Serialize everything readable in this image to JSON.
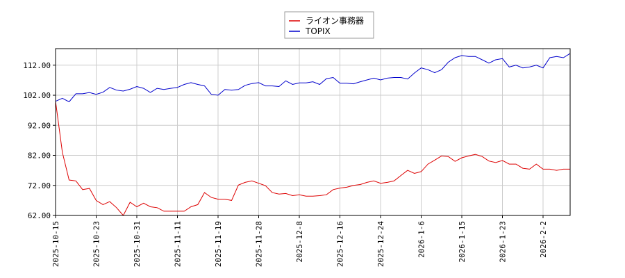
{
  "chart_data": {
    "type": "line",
    "title": "",
    "xlabel": "",
    "ylabel": "",
    "ylim": [
      62,
      117.5
    ],
    "yticks": [
      "62.00",
      "72.00",
      "82.00",
      "92.00",
      "102.00",
      "112.00"
    ],
    "ytick_values": [
      62,
      72,
      82,
      92,
      102,
      112
    ],
    "xticks": [
      "2025-10-15",
      "2025-10-23",
      "2025-10-31",
      "2025-11-11",
      "2025-11-19",
      "2025-11-28",
      "2025-12-8",
      "2025-12-16",
      "2025-12-24",
      "2026-1-6",
      "2026-1-15",
      "2026-1-23",
      "2026-2-2"
    ],
    "xtick_index": [
      0,
      6,
      12,
      18,
      24,
      30,
      36,
      42,
      48,
      54,
      60,
      66,
      72
    ],
    "grid": true,
    "legend": {
      "placement": "top-center"
    },
    "series": [
      {
        "name": "ライオン事務器",
        "color": "#dd0000",
        "values": [
          100.0,
          83.0,
          73.8,
          73.5,
          70.6,
          71.0,
          67.0,
          65.6,
          66.6,
          64.6,
          62.0,
          66.4,
          64.9,
          66.1,
          64.9,
          64.6,
          63.4,
          63.4,
          63.4,
          63.4,
          64.9,
          65.6,
          69.6,
          68.0,
          67.4,
          67.4,
          67.0,
          72.1,
          73.0,
          73.5,
          72.7,
          71.9,
          69.6,
          69.1,
          69.3,
          68.6,
          68.9,
          68.4,
          68.4,
          68.6,
          68.9,
          70.6,
          71.1,
          71.4,
          72.0,
          72.3,
          73.0,
          73.5,
          72.7,
          73.0,
          73.5,
          75.3,
          77.0,
          76.0,
          76.6,
          79.1,
          80.4,
          81.8,
          81.6,
          80.0,
          81.2,
          81.8,
          82.3,
          81.6,
          80.1,
          79.6,
          80.3,
          79.1,
          79.1,
          77.7,
          77.4,
          79.1,
          77.4,
          77.4,
          77.0,
          77.4,
          77.4
        ]
      },
      {
        "name": "TOPIX",
        "color": "#0000cc",
        "values": [
          100.0,
          101.0,
          99.8,
          102.5,
          102.5,
          102.9,
          102.3,
          103.0,
          104.6,
          103.7,
          103.4,
          104.0,
          104.9,
          104.3,
          102.9,
          104.3,
          103.9,
          104.3,
          104.6,
          105.6,
          106.2,
          105.6,
          105.1,
          102.3,
          102.0,
          103.9,
          103.7,
          103.9,
          105.3,
          105.9,
          106.2,
          105.1,
          105.1,
          104.9,
          106.8,
          105.6,
          106.1,
          106.1,
          106.5,
          105.6,
          107.5,
          107.9,
          106.0,
          106.0,
          105.8,
          106.5,
          107.1,
          107.7,
          107.1,
          107.7,
          107.9,
          107.9,
          107.4,
          109.4,
          111.1,
          110.5,
          109.5,
          110.5,
          113.0,
          114.5,
          115.2,
          114.9,
          114.9,
          113.8,
          112.7,
          113.8,
          114.2,
          111.4,
          112.0,
          111.1,
          111.4,
          112.0,
          111.1,
          114.5,
          114.9,
          114.5,
          115.9
        ]
      }
    ]
  }
}
